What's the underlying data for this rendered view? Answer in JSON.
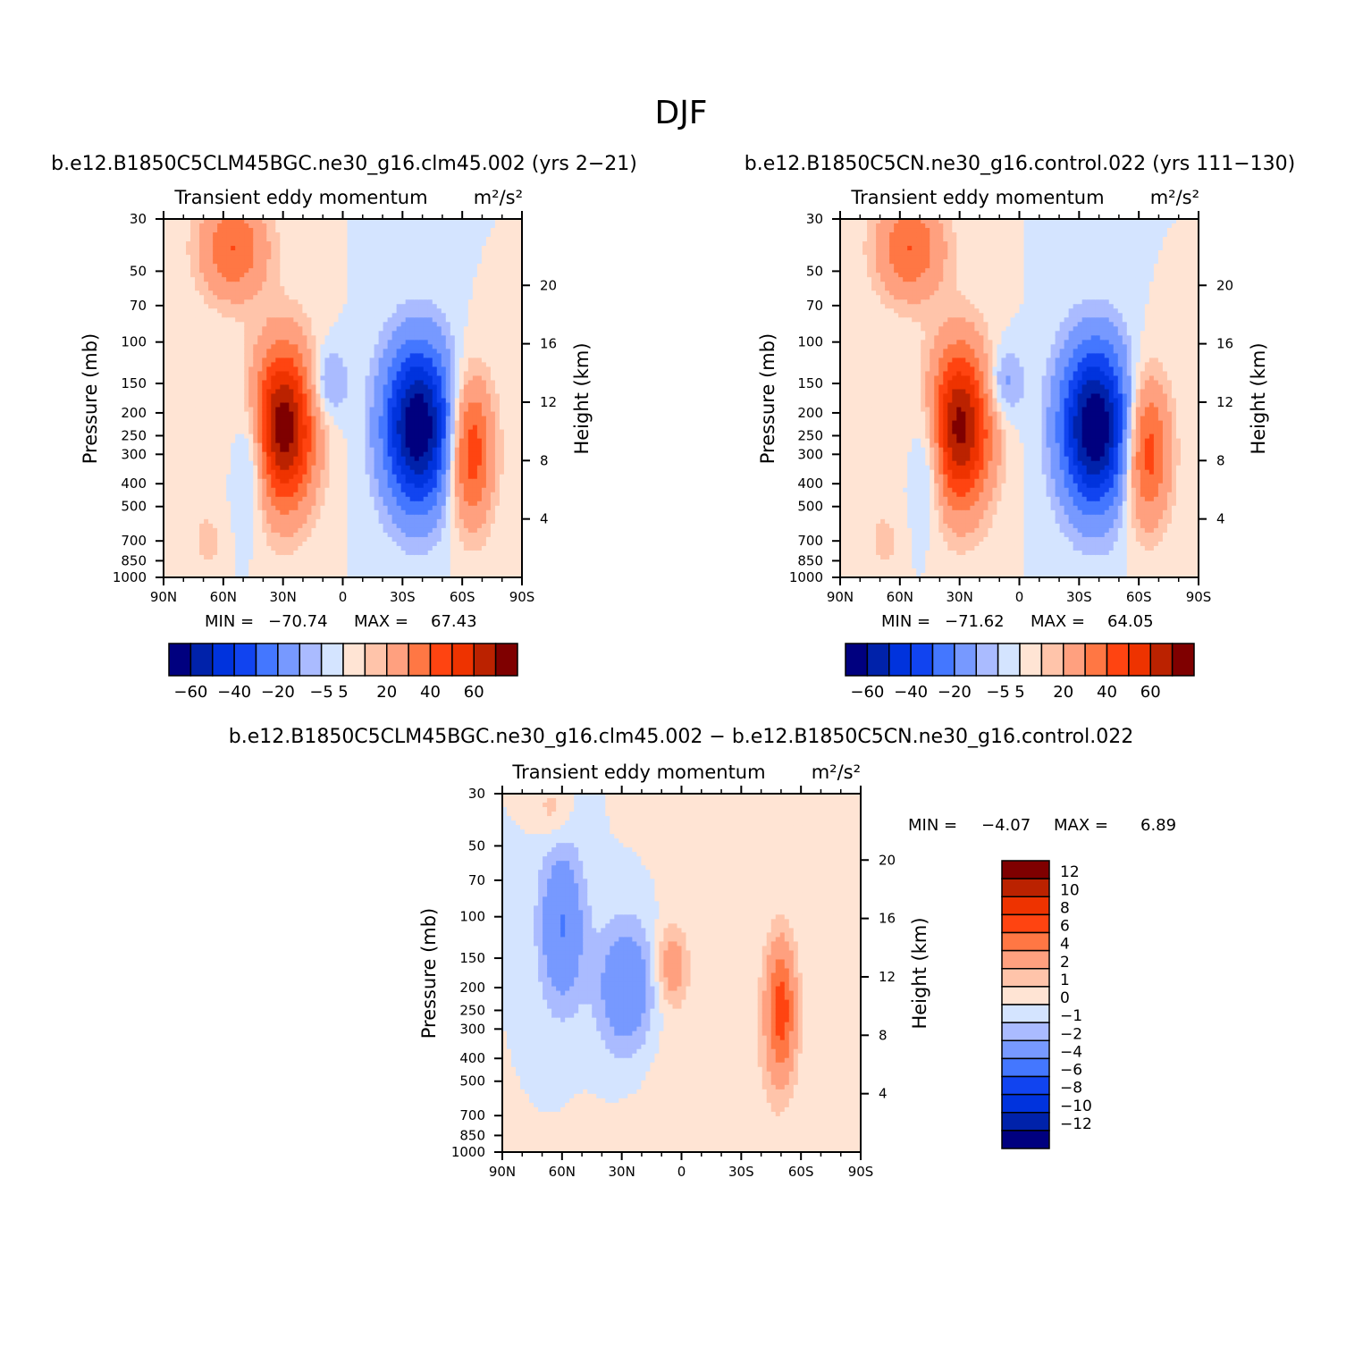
{
  "page": {
    "title": "DJF"
  },
  "colors": {
    "abs_levels": [
      "#00007f",
      "#0022aa",
      "#0033dd",
      "#1144f0",
      "#4477ff",
      "#7799ff",
      "#aabbff",
      "#d4e4ff",
      "#ffe4d4",
      "#ffc4aa",
      "#ffa07f",
      "#ff7744",
      "#ff4411",
      "#ee3300",
      "#bb2200",
      "#7f0000"
    ],
    "diff_levels": [
      "#00007f",
      "#0022aa",
      "#0033dd",
      "#1144f0",
      "#4477ff",
      "#7799ff",
      "#aabbff",
      "#d4e4ff",
      "#ffe4d4",
      "#ffc4aa",
      "#ffa07f",
      "#ff7744",
      "#ff4411",
      "#ee3300",
      "#bb2200",
      "#7f0000"
    ]
  },
  "chart_data": [
    {
      "type": "contour",
      "panel": "left",
      "case_title": "b.e12.B1850C5CLM45BGC.ne30_g16.clm45.002 (yrs 2−21)",
      "subtitle": "Transient  eddy  momentum",
      "units": "m²/s²",
      "xlabel": "",
      "ylabel": "Pressure  (mb)",
      "y2label": "Height  (km)",
      "x_ticks": [
        "90N",
        "60N",
        "30N",
        "0",
        "30S",
        "60S",
        "90S"
      ],
      "x_range": [
        90,
        -90
      ],
      "y_ticks": [
        30,
        50,
        70,
        100,
        150,
        200,
        250,
        300,
        400,
        500,
        700,
        850,
        1000
      ],
      "y_range": [
        30,
        1000
      ],
      "height_ticks": [
        20,
        16,
        12,
        8,
        4
      ],
      "min_label": "MIN  =",
      "max_label": "MAX  =",
      "min": "−70.74",
      "max": "67.43",
      "levels": [
        -60,
        -50,
        -40,
        -30,
        -20,
        -10,
        -5,
        0,
        5,
        10,
        20,
        30,
        40,
        50,
        60
      ],
      "colorbar_labels": [
        "−60",
        "−40",
        "−20",
        "−5",
        "5",
        "20",
        "40",
        "60"
      ],
      "features": [
        {
          "lat": 55,
          "p": 40,
          "value": 30,
          "sx": 12,
          "sy": 0.35
        },
        {
          "lat": 30,
          "p": 230,
          "value": 67.43,
          "sx": 11,
          "sy": 0.55
        },
        {
          "lat": 45,
          "p": 300,
          "value": -20,
          "sx": 6,
          "sy": 0.45
        },
        {
          "lat": 8,
          "p": 150,
          "value": -15,
          "sx": 7,
          "sy": 0.25
        },
        {
          "lat": -38,
          "p": 230,
          "value": -70.74,
          "sx": 12,
          "sy": 0.55
        },
        {
          "lat": -64,
          "p": 290,
          "value": 40,
          "sx": 8,
          "sy": 0.5
        },
        {
          "lat": 68,
          "p": 700,
          "value": 8,
          "sx": 5,
          "sy": 0.2
        }
      ]
    },
    {
      "type": "contour",
      "panel": "right",
      "case_title": "b.e12.B1850C5CN.ne30_g16.control.022 (yrs 111−130)",
      "subtitle": "Transient  eddy  momentum",
      "units": "m²/s²",
      "xlabel": "",
      "ylabel": "Pressure  (mb)",
      "y2label": "Height  (km)",
      "x_ticks": [
        "90N",
        "60N",
        "30N",
        "0",
        "30S",
        "60S",
        "90S"
      ],
      "x_range": [
        90,
        -90
      ],
      "y_ticks": [
        30,
        50,
        70,
        100,
        150,
        200,
        250,
        300,
        400,
        500,
        700,
        850,
        1000
      ],
      "y_range": [
        30,
        1000
      ],
      "height_ticks": [
        20,
        16,
        12,
        8,
        4
      ],
      "min_label": "MIN  =",
      "max_label": "MAX  =",
      "min": "−71.62",
      "max": "64.05",
      "levels": [
        -60,
        -50,
        -40,
        -30,
        -20,
        -10,
        -5,
        0,
        5,
        10,
        20,
        30,
        40,
        50,
        60
      ],
      "colorbar_labels": [
        "−60",
        "−40",
        "−20",
        "−5",
        "5",
        "20",
        "40",
        "60"
      ],
      "features": [
        {
          "lat": 55,
          "p": 40,
          "value": 30,
          "sx": 12,
          "sy": 0.35
        },
        {
          "lat": 30,
          "p": 230,
          "value": 64.05,
          "sx": 11,
          "sy": 0.55
        },
        {
          "lat": 45,
          "p": 300,
          "value": -18,
          "sx": 6,
          "sy": 0.45
        },
        {
          "lat": 8,
          "p": 150,
          "value": -15,
          "sx": 7,
          "sy": 0.25
        },
        {
          "lat": -38,
          "p": 230,
          "value": -71.62,
          "sx": 12,
          "sy": 0.55
        },
        {
          "lat": -64,
          "p": 290,
          "value": 38,
          "sx": 8,
          "sy": 0.5
        },
        {
          "lat": 68,
          "p": 700,
          "value": 8,
          "sx": 5,
          "sy": 0.2
        }
      ]
    },
    {
      "type": "contour",
      "panel": "difference",
      "case_title": "b.e12.B1850C5CLM45BGC.ne30_g16.clm45.002 − b.e12.B1850C5CN.ne30_g16.control.022",
      "subtitle": "Transient  eddy  momentum",
      "units": "m²/s²",
      "xlabel": "",
      "ylabel": "Pressure  (mb)",
      "y2label": "Height  (km)",
      "x_ticks": [
        "90N",
        "60N",
        "30N",
        "0",
        "30S",
        "60S",
        "90S"
      ],
      "x_range": [
        90,
        -90
      ],
      "y_ticks": [
        30,
        50,
        70,
        100,
        150,
        200,
        250,
        300,
        400,
        500,
        700,
        850,
        1000
      ],
      "y_range": [
        30,
        1000
      ],
      "height_ticks": [
        20,
        16,
        12,
        8,
        4
      ],
      "min_label": "MIN  =",
      "max_label": "MAX  =",
      "min": "−4.07",
      "max": "6.89",
      "levels": [
        -12,
        -10,
        -8,
        -6,
        -4,
        -2,
        -1,
        0,
        1,
        2,
        4,
        6,
        8,
        10,
        12
      ],
      "colorbar_labels": [
        "12",
        "10",
        "8",
        "6",
        "4",
        "2",
        "1",
        "0",
        "−1",
        "−2",
        "−4",
        "−6",
        "−8",
        "−10",
        "−12"
      ],
      "features": [
        {
          "lat": 60,
          "p": 110,
          "value": -4.07,
          "sx": 8,
          "sy": 0.55
        },
        {
          "lat": 28,
          "p": 200,
          "value": -4.0,
          "sx": 10,
          "sy": 0.45
        },
        {
          "lat": 5,
          "p": 160,
          "value": 3,
          "sx": 5,
          "sy": 0.25
        },
        {
          "lat": -50,
          "p": 250,
          "value": 6.89,
          "sx": 5,
          "sy": 0.45
        },
        {
          "lat": 65,
          "p": 35,
          "value": 1.5,
          "sx": 6,
          "sy": 0.2
        },
        {
          "lat": -20,
          "p": 500,
          "value": 0.8,
          "sx": 30,
          "sy": 1.2
        }
      ]
    }
  ]
}
